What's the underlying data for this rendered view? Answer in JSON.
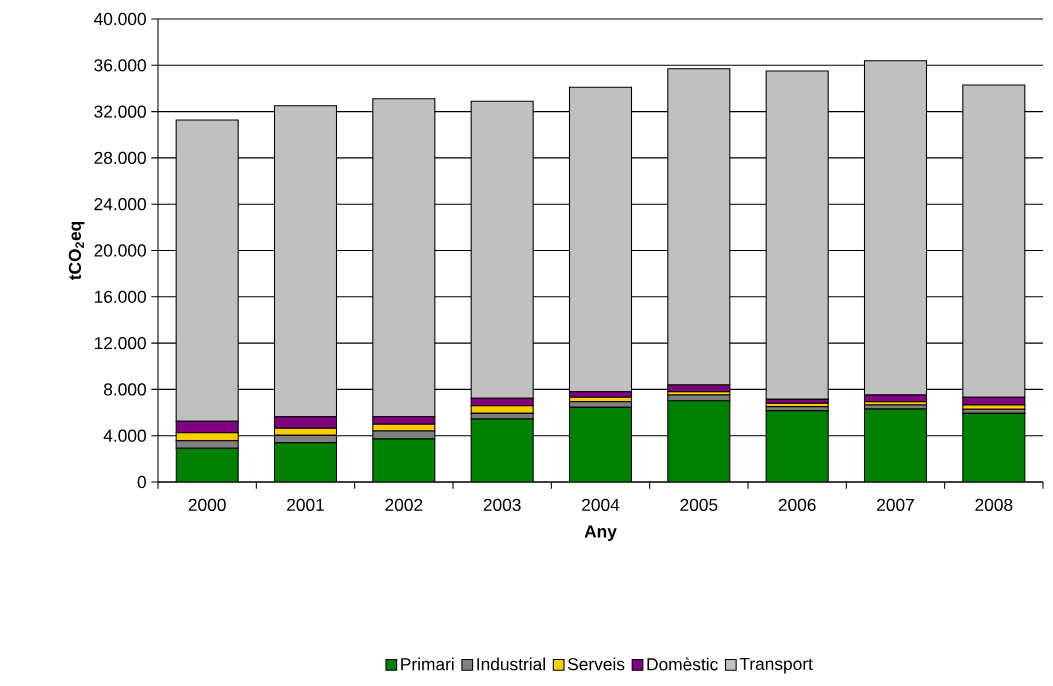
{
  "chart_data": {
    "type": "bar",
    "stacked": true,
    "xlabel": "Any",
    "ylabel": "tCO$_{2}$eq",
    "categories": [
      "2000",
      "2001",
      "2002",
      "2003",
      "2004",
      "2005",
      "2006",
      "2007",
      "2008"
    ],
    "series": [
      {
        "name": "Primari",
        "color": "#008000",
        "values": [
          2910,
          3400,
          3715,
          5440,
          6450,
          7020,
          6160,
          6300,
          5930
        ]
      },
      {
        "name": "Industrial",
        "color": "#808080",
        "values": [
          650,
          630,
          690,
          490,
          490,
          500,
          350,
          350,
          350
        ]
      },
      {
        "name": "Serveis",
        "color": "#ffcc00",
        "values": [
          690,
          610,
          585,
          660,
          380,
          280,
          290,
          290,
          370
        ]
      },
      {
        "name": "Domèstic",
        "color": "#800080",
        "values": [
          1000,
          1000,
          655,
          640,
          480,
          580,
          340,
          580,
          670
        ]
      },
      {
        "name": "Transport",
        "color": "#c0c0c0",
        "values": [
          26030,
          26860,
          27460,
          25670,
          26300,
          27320,
          28360,
          28880,
          26980
        ]
      }
    ],
    "ylim": [
      0,
      40000
    ],
    "yticks": [
      0,
      {
        "value": 4000,
        "label": "4.000"
      },
      {
        "value": 8000,
        "label": "8.000"
      },
      {
        "value": 12000,
        "label": "12.000"
      },
      {
        "value": 16000,
        "label": "16.000"
      },
      {
        "value": 20000,
        "label": "20.000"
      },
      {
        "value": 24000,
        "label": "24.000"
      },
      {
        "value": 28000,
        "label": "28.000"
      },
      {
        "value": 32000,
        "label": "32.000"
      },
      {
        "value": 36000,
        "label": "36.000"
      },
      {
        "value": 40000,
        "label": "40.000"
      }
    ],
    "grid": "y",
    "legend": "bottom"
  }
}
